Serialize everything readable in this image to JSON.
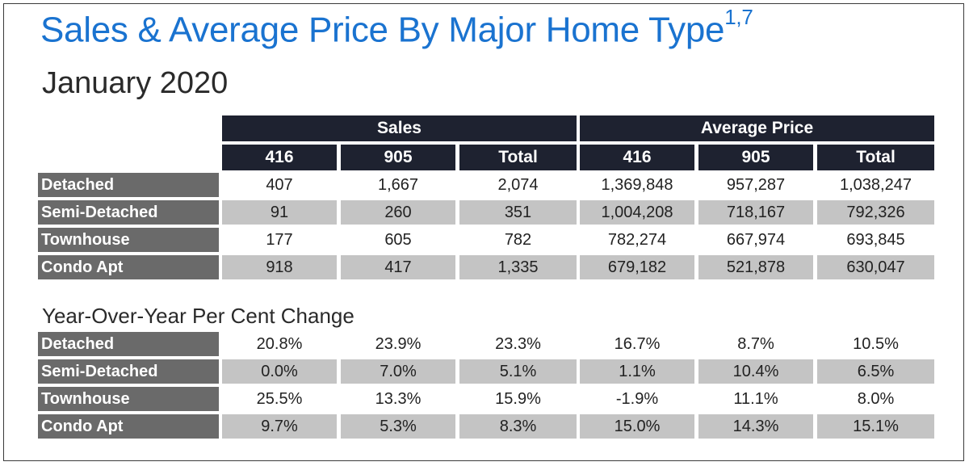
{
  "title": "Sales & Average Price By Major Home Type",
  "title_sup": "1,7",
  "subtitle": "January 2020",
  "groups": [
    "Sales",
    "Average Price"
  ],
  "columns": [
    "416",
    "905",
    "Total",
    "416",
    "905",
    "Total"
  ],
  "row_labels": [
    "Detached",
    "Semi-Detached",
    "Townhouse",
    "Condo Apt"
  ],
  "sales_table": [
    [
      "407",
      "1,667",
      "2,074",
      "1,369,848",
      "957,287",
      "1,038,247"
    ],
    [
      "91",
      "260",
      "351",
      "1,004,208",
      "718,167",
      "792,326"
    ],
    [
      "177",
      "605",
      "782",
      "782,274",
      "667,974",
      "693,845"
    ],
    [
      "918",
      "417",
      "1,335",
      "679,182",
      "521,878",
      "630,047"
    ]
  ],
  "yoy_label": "Year-Over-Year Per Cent Change",
  "yoy_table": [
    [
      "20.8%",
      "23.9%",
      "23.3%",
      "16.7%",
      "8.7%",
      "10.5%"
    ],
    [
      "0.0%",
      "7.0%",
      "5.1%",
      "1.1%",
      "10.4%",
      "6.5%"
    ],
    [
      "25.5%",
      "13.3%",
      "15.9%",
      "-1.9%",
      "11.1%",
      "8.0%"
    ],
    [
      "9.7%",
      "5.3%",
      "8.3%",
      "15.0%",
      "14.3%",
      "15.1%"
    ]
  ],
  "colors": {
    "title": "#1a73d0",
    "header_bg": "#1e2230",
    "row_label_bg": "#6a6a6a",
    "shaded_row": "#c4c4c4"
  }
}
